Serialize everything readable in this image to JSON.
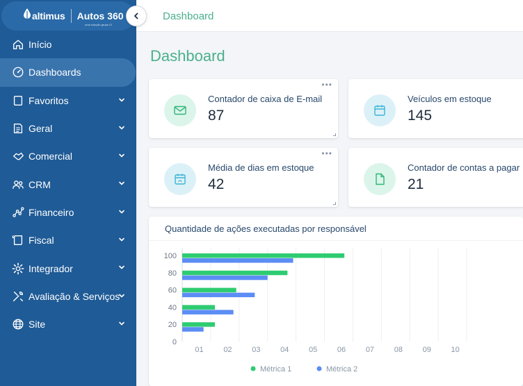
{
  "brand": {
    "name": "altimus",
    "product": "Autos 360",
    "sub": "uma solução grupo CI"
  },
  "sidebar": {
    "items": [
      {
        "label": "Início",
        "icon": "home-icon",
        "active": false,
        "chevron": false
      },
      {
        "label": "Dashboards",
        "icon": "dashboard-gauge-icon",
        "active": true,
        "chevron": false
      },
      {
        "label": "Favoritos",
        "icon": "bookmark-icon",
        "active": false,
        "chevron": true
      },
      {
        "label": "Geral",
        "icon": "document-list-icon",
        "active": false,
        "chevron": true
      },
      {
        "label": "Comercial",
        "icon": "handshake-icon",
        "active": false,
        "chevron": true
      },
      {
        "label": "CRM",
        "icon": "people-icon",
        "active": false,
        "chevron": true
      },
      {
        "label": "Financeiro",
        "icon": "chart-line-icon",
        "active": false,
        "chevron": true
      },
      {
        "label": "Fiscal",
        "icon": "receipt-icon",
        "active": false,
        "chevron": true
      },
      {
        "label": "Integrador",
        "icon": "gear-icon",
        "active": false,
        "chevron": true
      },
      {
        "label": "Avaliação & Serviços",
        "icon": "tools-icon",
        "active": false,
        "chevron": true
      },
      {
        "label": "Site",
        "icon": "globe-icon",
        "active": false,
        "chevron": true
      }
    ]
  },
  "header": {
    "breadcrumb": "Dashboard"
  },
  "page": {
    "title": "Dashboard"
  },
  "cards": [
    {
      "label": "Contador de caixa de E-mail",
      "value": "87",
      "icon": "mail-icon",
      "tone": "green",
      "menu": true
    },
    {
      "label": "Veículos em estoque",
      "value": "145",
      "icon": "calendar-icon",
      "tone": "blue",
      "menu": false
    },
    {
      "label": "Média de dias em estoque",
      "value": "42",
      "icon": "calendar-clock-icon",
      "tone": "blue",
      "menu": true
    },
    {
      "label": "Contador de contas a pagar",
      "value": "21",
      "icon": "file-icon",
      "tone": "green",
      "menu": false
    }
  ],
  "colors": {
    "sidebar": "#1f5b96",
    "accent": "#4bb08a",
    "series1": "#2ecc71",
    "series2": "#5b8df5"
  },
  "chart_data": {
    "type": "bar",
    "orientation": "horizontal",
    "title": "Quantidade de ações executadas por responsável",
    "x_ticks": [
      "01",
      "02",
      "03",
      "04",
      "05",
      "06",
      "07",
      "08",
      "09",
      "10"
    ],
    "y_ticks": [
      "100",
      "80",
      "60",
      "40",
      "20",
      "0"
    ],
    "xlim": [
      0,
      10
    ],
    "y_categories": [
      100,
      80,
      60,
      40,
      20
    ],
    "series": [
      {
        "name": "Métrica 1",
        "values": [
          5.7,
          3.7,
          1.9,
          1.15,
          1.15
        ]
      },
      {
        "name": "Métrica 2",
        "values": [
          3.9,
          3.0,
          2.55,
          1.8,
          0.75
        ]
      }
    ],
    "grid": true,
    "legend": "bottom"
  }
}
